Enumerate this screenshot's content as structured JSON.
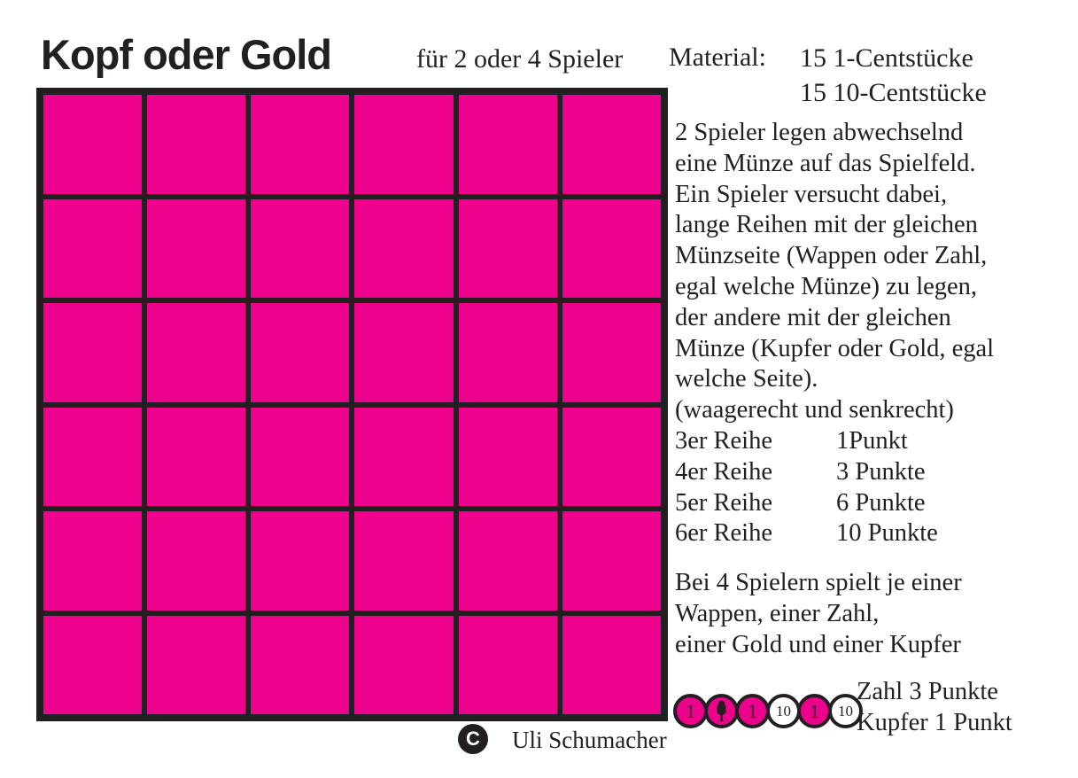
{
  "header": {
    "title": "Kopf oder Gold",
    "players": "für 2 oder 4 Spieler",
    "material_label": "Material:",
    "material_items": [
      "15 1-Centstücke",
      "15 10-Centstücke"
    ]
  },
  "board": {
    "rows": 6,
    "cols": 6,
    "cell_color": "#EC008C",
    "line_color": "#231F20"
  },
  "rules": {
    "intro_lines": [
      "2 Spieler legen abwechselnd",
      "eine Münze auf das Spielfeld.",
      "Ein Spieler versucht dabei,",
      "lange Reihen mit der gleichen",
      "Münzseite (Wappen oder Zahl,",
      "egal welche Münze) zu legen,",
      "der andere mit der gleichen",
      "Münze (Kupfer oder Gold, egal",
      "welche Seite).",
      "(waagerecht und senkrecht)"
    ],
    "points_table": [
      {
        "row": "3er Reihe",
        "points": "1Punkt"
      },
      {
        "row": "4er Reihe",
        "points": "3 Punkte"
      },
      {
        "row": "5er Reihe",
        "points": "6 Punkte"
      },
      {
        "row": "6er Reihe",
        "points": "10 Punkte"
      }
    ],
    "four_player_lines": [
      "Bei 4 Spielern spielt je einer",
      "Wappen, einer Zahl,",
      "einer Gold und einer Kupfer"
    ]
  },
  "scoring_example": {
    "coins": [
      {
        "face": "1",
        "style": "magenta"
      },
      {
        "face": "wappen-icon",
        "style": "magenta"
      },
      {
        "face": "1",
        "style": "magenta"
      },
      {
        "face": "10",
        "style": "white"
      },
      {
        "face": "1",
        "style": "magenta"
      },
      {
        "face": "10",
        "style": "white"
      }
    ],
    "score_lines": [
      "Zahl 3 Punkte",
      "Kupfer 1 Punkt"
    ]
  },
  "footer": {
    "copyright_symbol": "C",
    "author": "Uli Schumacher"
  },
  "colors": {
    "magenta": "#EC008C",
    "ink": "#231F20"
  }
}
